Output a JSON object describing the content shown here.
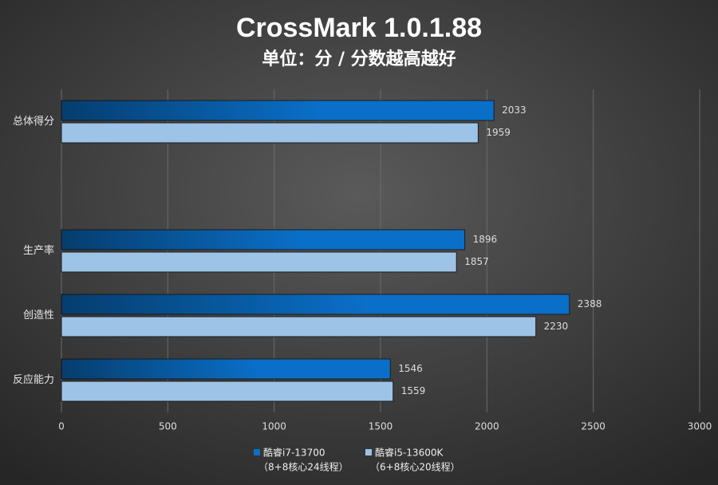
{
  "chart_data": {
    "type": "hbar",
    "title": "CrossMark 1.0.1.88",
    "subtitle": "单位：分 / 分数越高越好",
    "categories": [
      "总体得分",
      null,
      "生产率",
      "创造性",
      "反应能力"
    ],
    "series": [
      {
        "name": "酷睿i7-13700",
        "detail": "（8+8核心24线程）",
        "color": "#0a6fc8",
        "values": [
          2033,
          null,
          1896,
          2388,
          1546
        ]
      },
      {
        "name": "酷睿i5-13600K",
        "detail": "（6+8核心20线程）",
        "color": "#9dc3e6",
        "values": [
          1959,
          null,
          1857,
          2230,
          1559
        ]
      }
    ],
    "xlim": [
      0,
      3000
    ],
    "xticks": [
      0,
      500,
      1000,
      1500,
      2000,
      2500,
      3000
    ],
    "grid": true
  }
}
